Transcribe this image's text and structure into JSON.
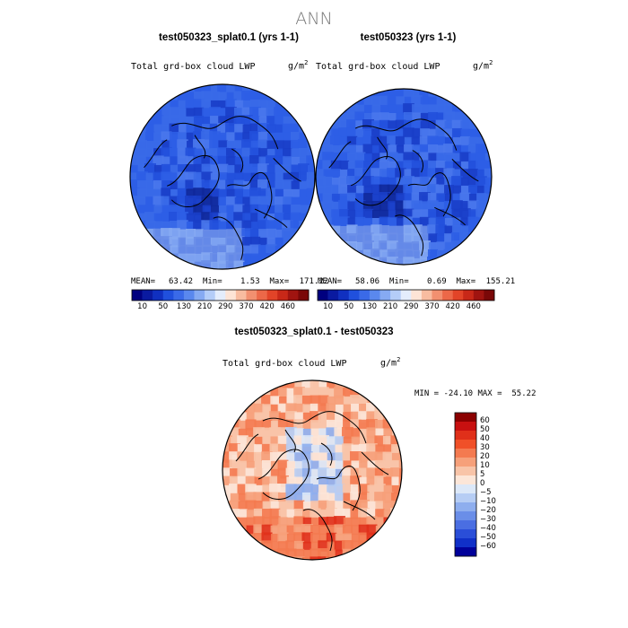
{
  "figure_title": "ANN",
  "panels": [
    {
      "title": "test050323_splat0.1 (yrs 1-1)",
      "variable": "Total grd-box cloud LWP",
      "units": "g/m",
      "units_exp": "2",
      "stats": {
        "mean_label": "MEAN=",
        "mean": "63.42",
        "min_label": "Min=",
        "min": "1.53",
        "max_label": "Max=",
        "max": "171.22"
      },
      "map_style": "blue"
    },
    {
      "title": "test050323 (yrs 1-1)",
      "variable": "Total grd-box cloud LWP",
      "units": "g/m",
      "units_exp": "2",
      "stats": {
        "mean_label": "MEAN=",
        "mean": "58.06",
        "min_label": "Min=",
        "min": "0.69",
        "max_label": "Max=",
        "max": "155.21"
      },
      "map_style": "blue"
    },
    {
      "title": "test050323_splat0.1 - test050323",
      "variable": "Total grd-box cloud LWP",
      "units": "g/m",
      "units_exp": "2",
      "stats": {
        "min_label": "MIN =",
        "min": "-24.10",
        "max_label": "MAX =",
        "max": "55.22"
      },
      "map_style": "diff"
    }
  ],
  "colorbar_abs": {
    "colors": [
      "#00007f",
      "#0a1aa0",
      "#1030c0",
      "#2050dd",
      "#3a6ae8",
      "#5a88ee",
      "#86aaf2",
      "#b4cdf8",
      "#e4edfc",
      "#fde4d6",
      "#f8bca0",
      "#f29070",
      "#ec6848",
      "#e24428",
      "#c82818",
      "#a01410",
      "#7a0808"
    ],
    "labels": [
      "10",
      "50",
      "130",
      "210",
      "290",
      "370",
      "420",
      "460"
    ]
  },
  "colorbar_diff": {
    "colors": [
      "#8b0000",
      "#c81010",
      "#e0301a",
      "#f05028",
      "#f47a50",
      "#f6a07a",
      "#f8c4a8",
      "#fce6d8",
      "#dce8f8",
      "#b6cdf4",
      "#8eaeee",
      "#6a8ee8",
      "#4a6ee2",
      "#2a4ed8",
      "#1030c8",
      "#00009a"
    ],
    "labels": [
      "60",
      "50",
      "40",
      "30",
      "20",
      "10",
      "5",
      "0",
      "−5",
      "−10",
      "−20",
      "−30",
      "−40",
      "−50",
      "−60"
    ]
  }
}
